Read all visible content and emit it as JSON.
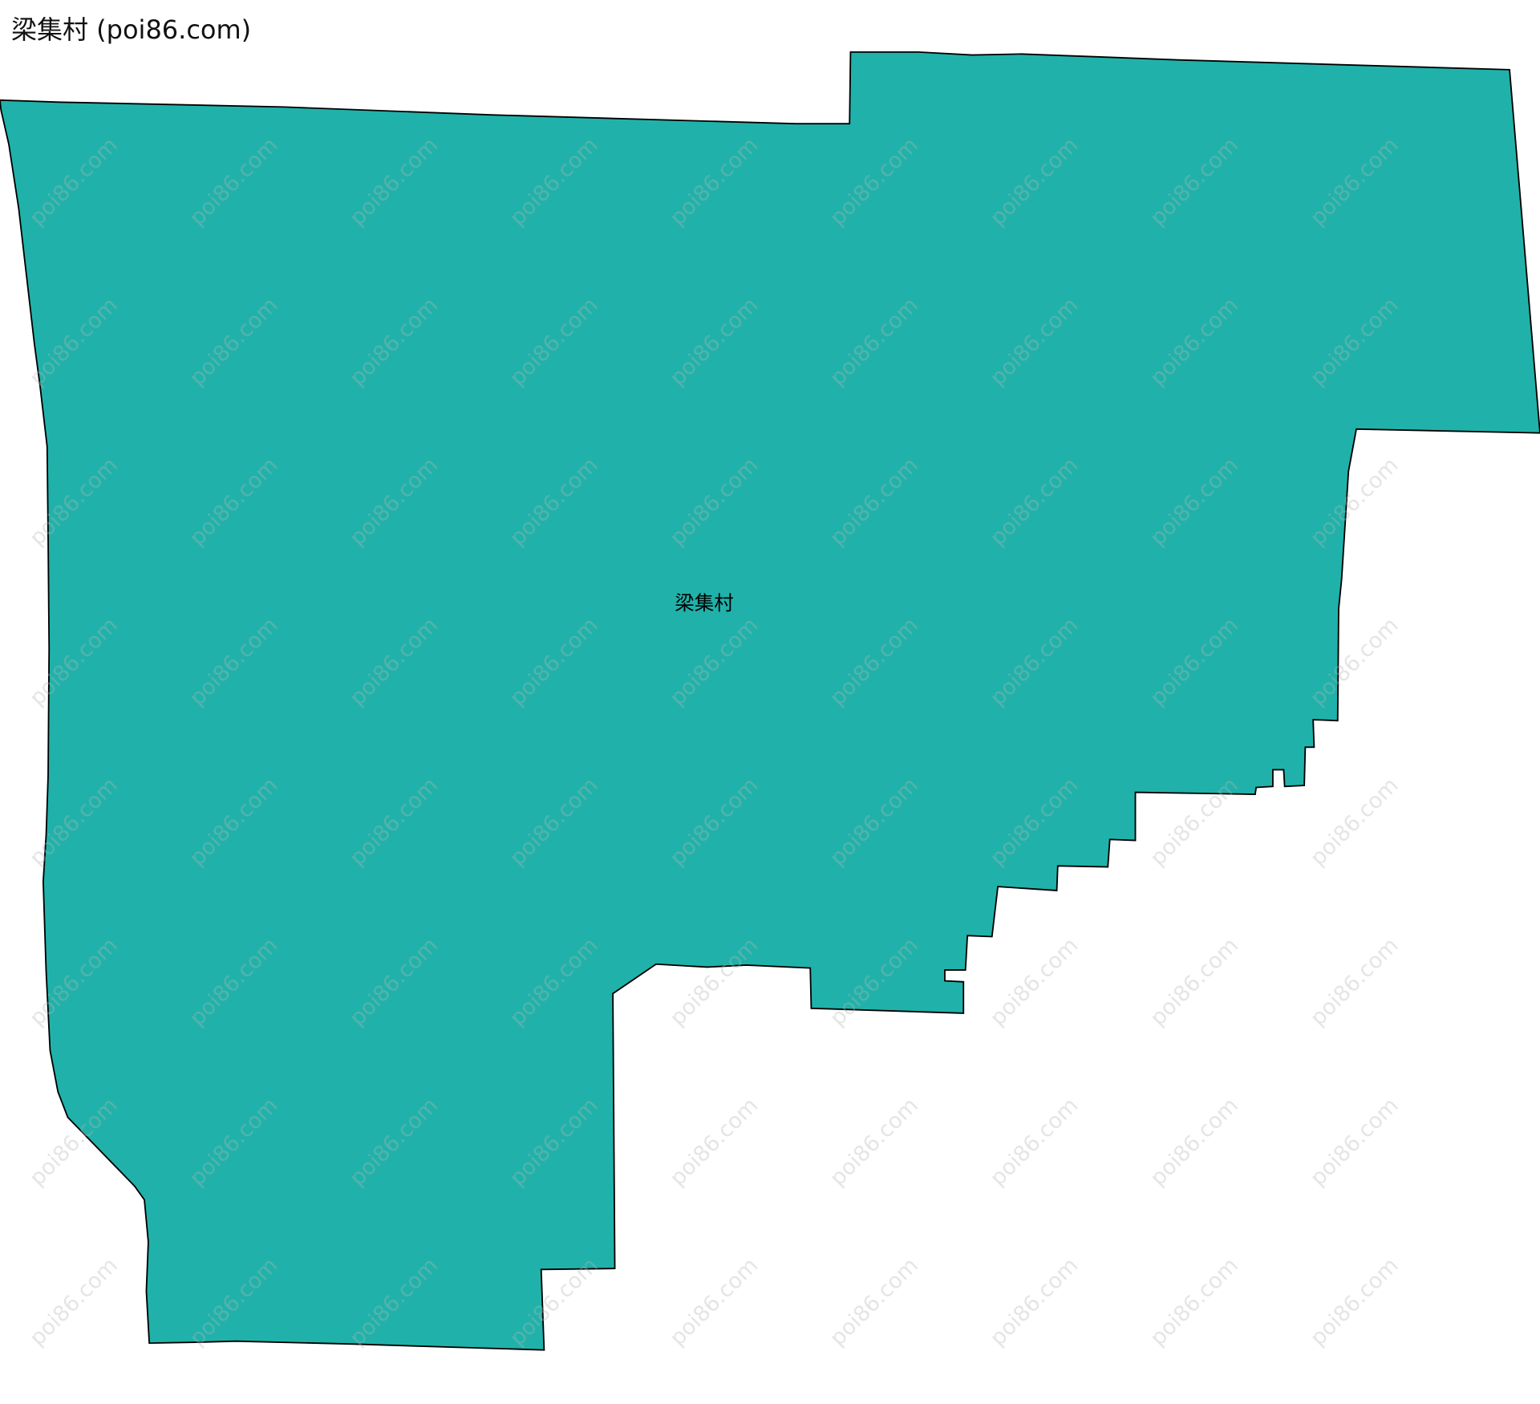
{
  "header": {
    "title": "梁集村 (poi86.com)"
  },
  "map": {
    "region_label": "梁集村",
    "watermark": "poi86.com",
    "fill_color": "#20b2aa",
    "stroke_color": "#000000"
  }
}
